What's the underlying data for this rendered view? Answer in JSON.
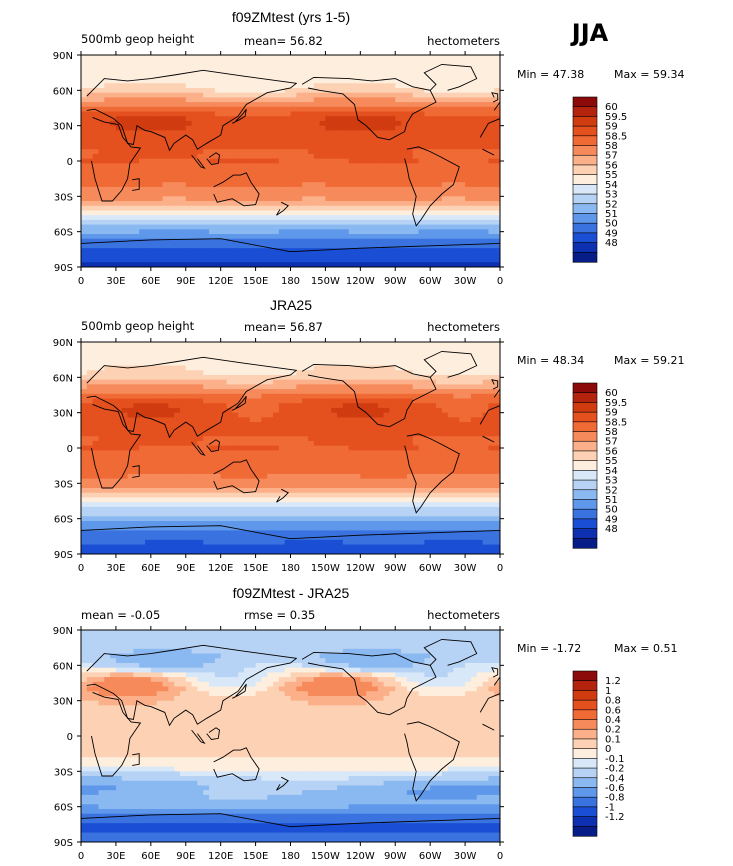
{
  "season": "JJA",
  "chart_data": [
    {
      "type": "heatmap",
      "title": "f09ZMtest (yrs 1-5)",
      "left_label": "500mb geop height",
      "center_label": "mean=  56.82",
      "right_label": "hectometers",
      "min_label": "Min =  47.38",
      "max_label": "Max =  59.34",
      "field": "model",
      "x_ticks": [
        "0",
        "30E",
        "60E",
        "90E",
        "120E",
        "150E",
        "180",
        "150W",
        "120W",
        "90W",
        "60W",
        "30W",
        "0"
      ],
      "y_ticks": [
        "90N",
        "60N",
        "30N",
        "0",
        "30S",
        "60S",
        "90S"
      ],
      "levels": [
        "60",
        "59.5",
        "59",
        "58.5",
        "58",
        "57",
        "56",
        "55",
        "54",
        "53",
        "52",
        "51",
        "50",
        "49",
        "48"
      ],
      "colors": [
        "#8c0a0a",
        "#b4230e",
        "#d03c10",
        "#e4501e",
        "#f06a36",
        "#f68a5a",
        "#fbb08a",
        "#fdd2b4",
        "#fdeede",
        "#d8e8f8",
        "#b6d2f4",
        "#8ab8f0",
        "#5f98ea",
        "#3a72e0",
        "#1a4ed4",
        "#0c30b0",
        "#061c86"
      ],
      "contours": [
        [
          -90,
          47.6
        ],
        [
          -80,
          48.3
        ],
        [
          -70,
          49.3
        ],
        [
          -60,
          51.0
        ],
        [
          -50,
          53.0
        ],
        [
          -45,
          54.3
        ],
        [
          -40,
          55.5
        ],
        [
          -35,
          56.6
        ],
        [
          -30,
          57.4
        ],
        [
          -20,
          58.1
        ],
        [
          -10,
          58.4
        ],
        [
          0,
          58.5
        ],
        [
          10,
          58.5
        ],
        [
          20,
          58.6
        ],
        [
          30,
          58.9
        ],
        [
          38,
          58.8
        ],
        [
          45,
          58.1
        ],
        [
          50,
          57.3
        ],
        [
          55,
          56.3
        ],
        [
          60,
          55.2
        ],
        [
          65,
          54.8
        ],
        [
          70,
          54.6
        ],
        [
          80,
          54.4
        ],
        [
          90,
          54.3
        ]
      ]
    },
    {
      "type": "heatmap",
      "title": "JRA25",
      "left_label": "500mb geop height",
      "center_label": "mean=  56.87",
      "right_label": "hectometers",
      "min_label": "Min =  48.34",
      "max_label": "Max =  59.21",
      "field": "obs",
      "x_ticks": [
        "0",
        "30E",
        "60E",
        "90E",
        "120E",
        "150E",
        "180",
        "150W",
        "120W",
        "90W",
        "60W",
        "30W",
        "0"
      ],
      "y_ticks": [
        "90N",
        "60N",
        "30N",
        "0",
        "30S",
        "60S",
        "90S"
      ],
      "levels": [
        "60",
        "59.5",
        "59",
        "58.5",
        "58",
        "57",
        "56",
        "55",
        "54",
        "53",
        "52",
        "51",
        "50",
        "49",
        "48"
      ],
      "colors": [
        "#8c0a0a",
        "#b4230e",
        "#d03c10",
        "#e4501e",
        "#f06a36",
        "#f68a5a",
        "#fbb08a",
        "#fdd2b4",
        "#fdeede",
        "#d8e8f8",
        "#b6d2f4",
        "#8ab8f0",
        "#5f98ea",
        "#3a72e0",
        "#1a4ed4",
        "#0c30b0",
        "#061c86"
      ],
      "contours": [
        [
          -90,
          48.5
        ],
        [
          -80,
          49.0
        ],
        [
          -70,
          49.8
        ],
        [
          -60,
          51.3
        ],
        [
          -50,
          53.2
        ],
        [
          -45,
          54.4
        ],
        [
          -40,
          55.6
        ],
        [
          -35,
          56.7
        ],
        [
          -30,
          57.5
        ],
        [
          -20,
          58.2
        ],
        [
          -10,
          58.4
        ],
        [
          0,
          58.5
        ],
        [
          10,
          58.5
        ],
        [
          20,
          58.6
        ],
        [
          30,
          58.8
        ],
        [
          38,
          58.7
        ],
        [
          45,
          58.1
        ],
        [
          50,
          57.4
        ],
        [
          55,
          56.5
        ],
        [
          60,
          55.4
        ],
        [
          65,
          55.0
        ],
        [
          70,
          54.8
        ],
        [
          80,
          54.6
        ],
        [
          90,
          54.5
        ]
      ]
    },
    {
      "type": "heatmap",
      "title": "f09ZMtest - JRA25",
      "left_label": "mean =  -0.05",
      "center_label": "rmse =   0.35",
      "right_label": "hectometers",
      "min_label": "Min =  -1.72",
      "max_label": "Max =   0.51",
      "field": "diff",
      "x_ticks": [
        "0",
        "30E",
        "60E",
        "90E",
        "120E",
        "150E",
        "180",
        "150W",
        "120W",
        "90W",
        "60W",
        "30W",
        "0"
      ],
      "y_ticks": [
        "90N",
        "60N",
        "30N",
        "0",
        "30S",
        "60S",
        "90S"
      ],
      "levels": [
        "1.2",
        "1",
        "0.8",
        "0.6",
        "0.4",
        "0.2",
        "0.1",
        "0",
        "-0.1",
        "-0.2",
        "-0.4",
        "-0.6",
        "-0.8",
        "-1",
        "-1.2"
      ],
      "colors": [
        "#8c0a0a",
        "#b4230e",
        "#d03c10",
        "#e4501e",
        "#f06a36",
        "#f68a5a",
        "#fbb08a",
        "#fdd2b4",
        "#fdeede",
        "#d8e8f8",
        "#b6d2f4",
        "#8ab8f0",
        "#5f98ea",
        "#3a72e0",
        "#1a4ed4",
        "#0c30b0",
        "#061c86"
      ],
      "contours": [
        [
          -90,
          -0.9
        ],
        [
          -75,
          -1.05
        ],
        [
          -65,
          -0.7
        ],
        [
          -55,
          -0.4
        ],
        [
          -45,
          -0.2
        ],
        [
          -35,
          -0.05
        ],
        [
          -20,
          0.0
        ],
        [
          0,
          0.02
        ],
        [
          20,
          0.05
        ],
        [
          40,
          0.12
        ],
        [
          50,
          0.02
        ],
        [
          60,
          -0.15
        ],
        [
          70,
          -0.35
        ],
        [
          80,
          -0.3
        ],
        [
          90,
          -0.2
        ]
      ]
    }
  ]
}
